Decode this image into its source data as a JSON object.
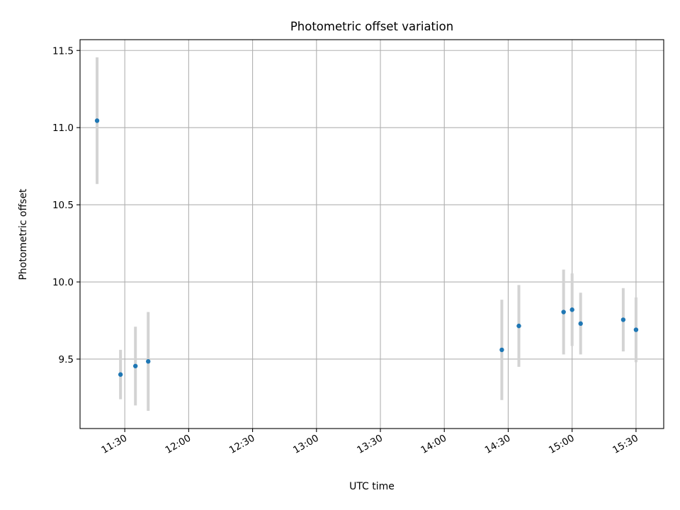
{
  "chart_data": {
    "type": "scatter",
    "title": "Photometric offset variation",
    "xlabel": "UTC time",
    "ylabel": "Photometric offset",
    "grid": true,
    "legend": "none",
    "x_tick_values": [
      "11:30",
      "12:00",
      "12:30",
      "13:00",
      "13:30",
      "14:00",
      "14:30",
      "15:00",
      "15:30"
    ],
    "x_tick_labels": [
      "11:30",
      "12:00",
      "12:30",
      "13:00",
      "13:30",
      "14:00",
      "14:30",
      "15:00",
      "15:30"
    ],
    "xlim": [
      "11:09",
      "15:43"
    ],
    "y_tick_values": [
      9.5,
      10.0,
      10.5,
      11.0,
      11.5
    ],
    "y_tick_labels": [
      "9.5",
      "10.0",
      "10.5",
      "11.0",
      "11.5"
    ],
    "ylim": [
      9.05,
      11.57
    ],
    "marker_color": "#1f77b4",
    "errorbar_color": "#d3d3d3",
    "points": [
      {
        "x": "11:17",
        "y": 11.045,
        "err": 0.41
      },
      {
        "x": "11:28",
        "y": 9.4,
        "err": 0.16
      },
      {
        "x": "11:35",
        "y": 9.455,
        "err": 0.255
      },
      {
        "x": "11:41",
        "y": 9.485,
        "err": 0.32
      },
      {
        "x": "14:27",
        "y": 9.56,
        "err": 0.325
      },
      {
        "x": "14:35",
        "y": 9.715,
        "err": 0.265
      },
      {
        "x": "14:56",
        "y": 9.805,
        "err": 0.275
      },
      {
        "x": "15:00",
        "y": 9.82,
        "err": 0.235
      },
      {
        "x": "15:04",
        "y": 9.73,
        "err": 0.2
      },
      {
        "x": "15:24",
        "y": 9.755,
        "err": 0.205
      },
      {
        "x": "15:30",
        "y": 9.69,
        "err": 0.21
      }
    ]
  }
}
